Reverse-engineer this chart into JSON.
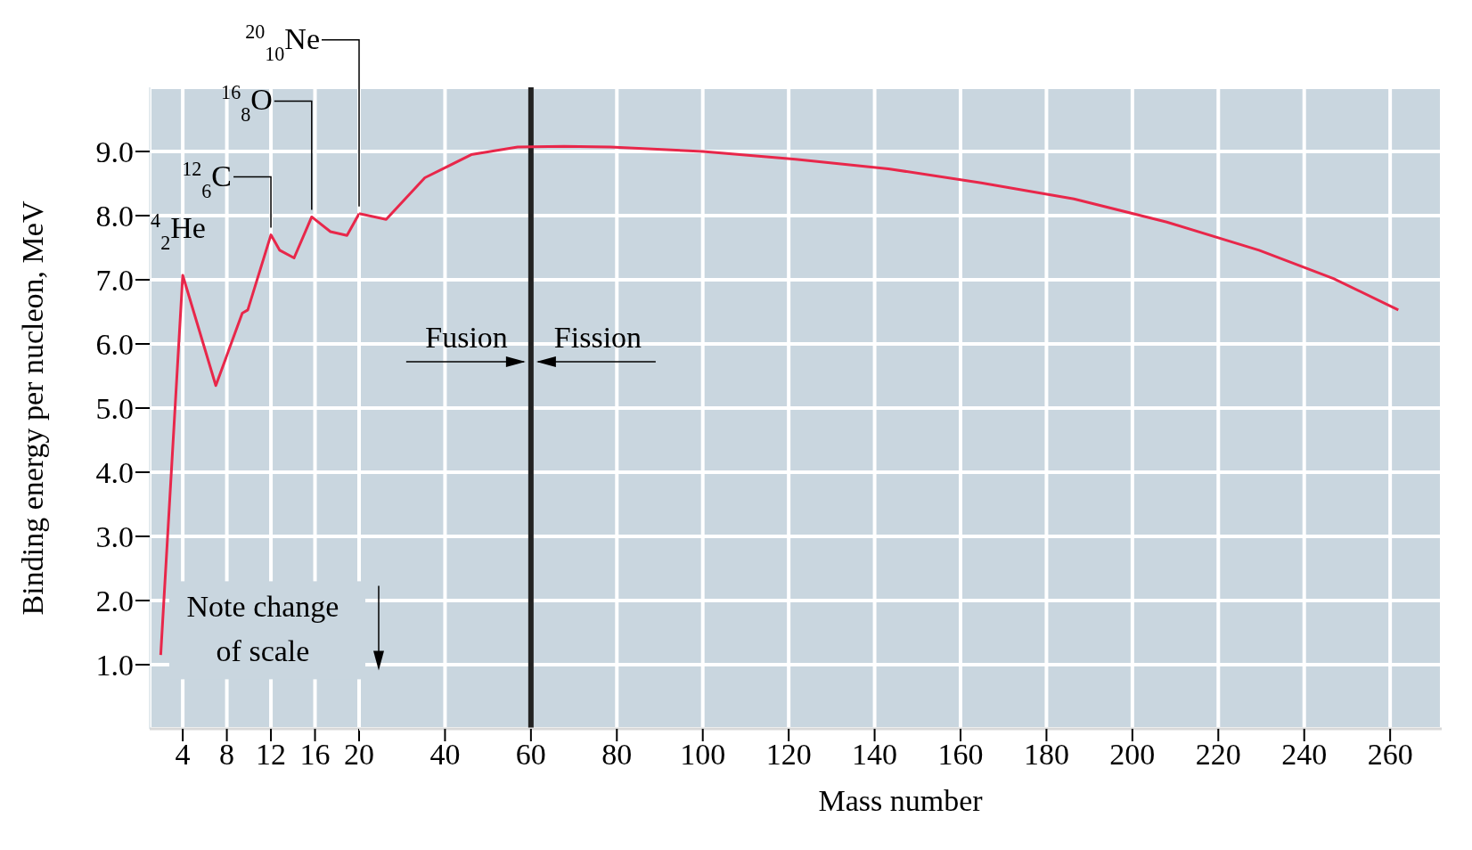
{
  "chart_data": [
    {
      "type": "line",
      "ylabel": "Binding energy per nucleon, MeV",
      "x": [
        2,
        4,
        7,
        9.4,
        9.9,
        12,
        12.8,
        14.1,
        15.7,
        17.4,
        18.9,
        20
      ],
      "series": [
        {
          "color": "#e8274a",
          "values": [
            1.15,
            7.07,
            5.35,
            6.48,
            6.53,
            7.7,
            7.46,
            7.34,
            7.98,
            7.75,
            7.69,
            8.03
          ]
        }
      ],
      "xlim": [
        1,
        20
      ],
      "xticks": [
        4,
        8,
        12,
        16,
        20
      ],
      "ylim": [
        0,
        10
      ],
      "yticks": [
        {
          "value": 1,
          "label": "1.0"
        },
        {
          "value": 2,
          "label": "2.0"
        },
        {
          "value": 3,
          "label": "3.0"
        },
        {
          "value": 4,
          "label": "4.0"
        },
        {
          "value": 5,
          "label": "5.0"
        },
        {
          "value": 6,
          "label": "6.0"
        },
        {
          "value": 7,
          "label": "7.0"
        },
        {
          "value": 8,
          "label": "8.0"
        },
        {
          "value": 9,
          "label": "9.0"
        }
      ],
      "grid": true,
      "annotations": [
        {
          "text": "$^{4}$$_{2}$He",
          "x": 4,
          "y": 7.07
        },
        {
          "text": "$^{12}$$_{6}$C",
          "x": 12,
          "y": 7.7
        },
        {
          "text": "$^{16}$$_{8}$O",
          "x": 15.7,
          "y": 7.98
        },
        {
          "text": "$^{20}$$_{10}$Ne",
          "x": 20,
          "y": 8.03
        },
        "Note change of scale"
      ]
    },
    {
      "type": "line",
      "xlabel": "Mass number",
      "x": [
        20,
        26.3,
        35.3,
        46.1,
        56.9,
        67.7,
        78.5,
        100,
        121.6,
        143.2,
        164.8,
        186.4,
        208,
        229.5,
        246.8,
        261.9
      ],
      "series": [
        {
          "color": "#e8274a",
          "values": [
            8.03,
            7.94,
            8.59,
            8.95,
            9.07,
            9.08,
            9.07,
            9.0,
            8.88,
            8.73,
            8.51,
            8.26,
            7.9,
            7.46,
            7.02,
            6.53
          ]
        }
      ],
      "xlim": [
        20,
        272
      ],
      "xticks": [
        40,
        60,
        80,
        100,
        120,
        140,
        160,
        180,
        200,
        220,
        240,
        260
      ],
      "ylim": [
        0,
        10
      ],
      "yticks": [
        1,
        2,
        3,
        4,
        5,
        6,
        7,
        8,
        9
      ],
      "tick_labels": "x",
      "grid": true,
      "ref_lines": [
        {
          "axis": "x",
          "value": 60,
          "color": "#222222"
        }
      ],
      "annotations": [
        "Fusion",
        "Fission"
      ]
    }
  ]
}
